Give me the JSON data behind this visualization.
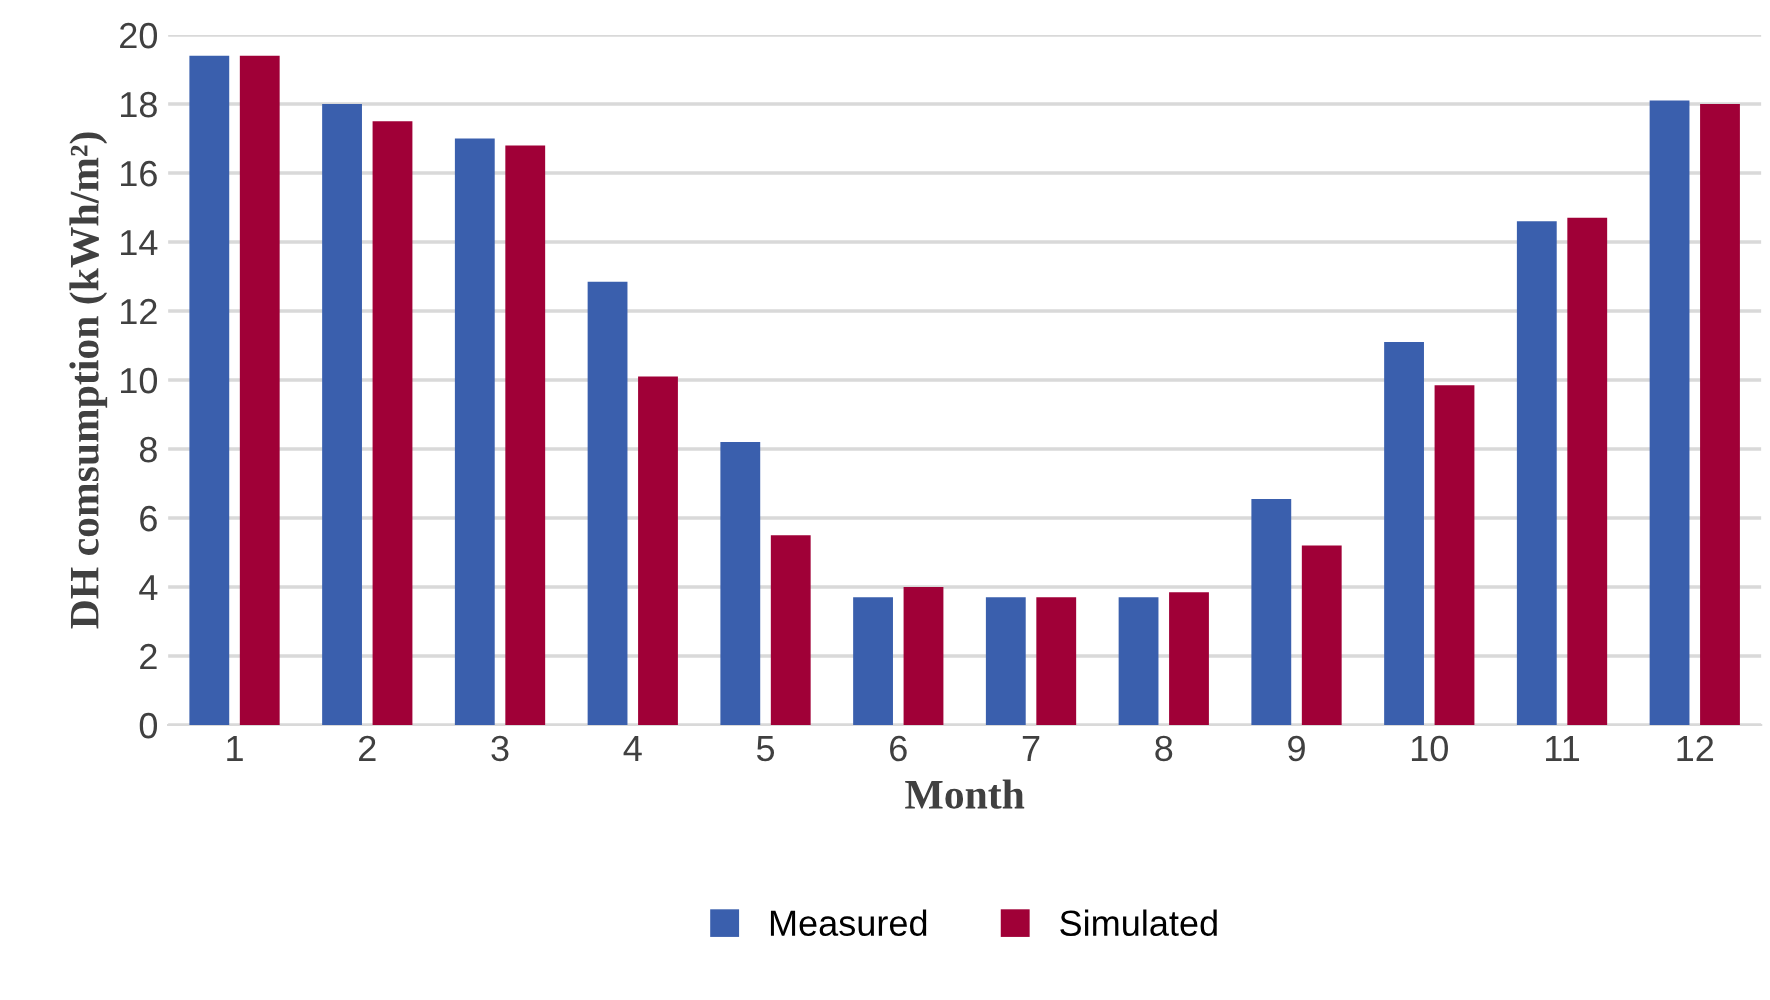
{
  "chart_data": {
    "type": "bar",
    "xlabel": "Month",
    "ylabel": "DH comsumption (kWh/m²)",
    "categories": [
      "1",
      "2",
      "3",
      "4",
      "5",
      "6",
      "7",
      "8",
      "9",
      "10",
      "11",
      "12"
    ],
    "series": [
      {
        "name": "Measured",
        "color": "#3a5fad",
        "values": [
          19.4,
          18.0,
          17.0,
          12.85,
          8.2,
          3.7,
          3.7,
          3.7,
          6.55,
          11.1,
          14.6,
          18.1
        ]
      },
      {
        "name": "Simulated",
        "color": "#a00037",
        "values": [
          19.4,
          17.5,
          16.8,
          10.1,
          5.5,
          4.0,
          3.7,
          3.85,
          5.2,
          9.85,
          14.7,
          18.0
        ]
      }
    ],
    "ylim": [
      0,
      20
    ],
    "yticks": [
      0,
      2,
      4,
      6,
      8,
      10,
      12,
      14,
      16,
      18,
      20
    ],
    "grid": "y",
    "legend": "bottom"
  }
}
